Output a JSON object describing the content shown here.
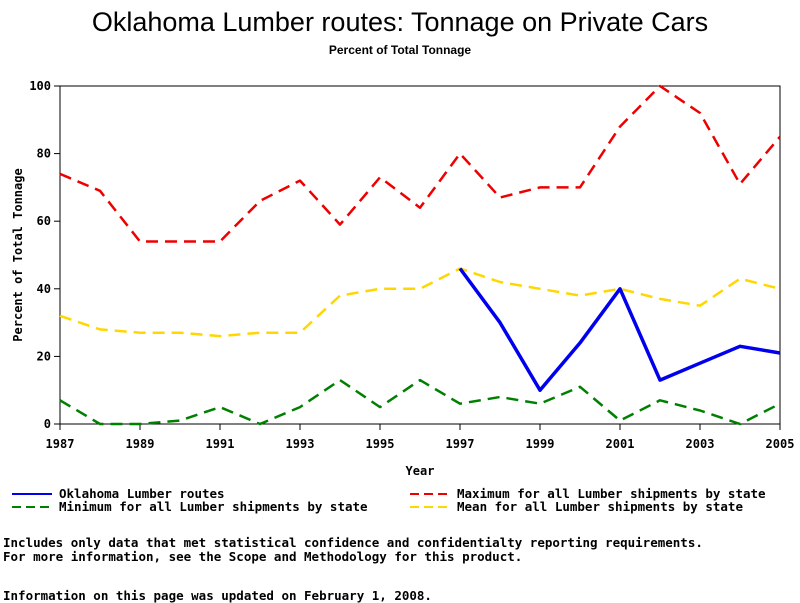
{
  "chart_data": {
    "type": "line",
    "title": "Oklahoma Lumber routes: Tonnage on Private Cars",
    "subtitle": "Percent of Total Tonnage",
    "xlabel": "Year",
    "ylabel": "Percent of Total Tonnage",
    "xlim": [
      1987,
      2005
    ],
    "ylim": [
      0,
      100
    ],
    "x_ticks": [
      "1987",
      "1989",
      "1991",
      "1993",
      "1995",
      "1997",
      "1999",
      "2001",
      "2003",
      "2005"
    ],
    "y_ticks": [
      "0",
      "20",
      "40",
      "60",
      "80",
      "100"
    ],
    "x": [
      1987,
      1988,
      1989,
      1990,
      1991,
      1992,
      1993,
      1994,
      1995,
      1996,
      1997,
      1998,
      1999,
      2000,
      2001,
      2002,
      2003,
      2004,
      2005
    ],
    "series": [
      {
        "name": "Oklahoma Lumber routes",
        "color": "#0000ee",
        "dashed": false,
        "values": [
          null,
          null,
          null,
          null,
          null,
          null,
          null,
          null,
          null,
          null,
          46,
          30,
          10,
          24,
          40,
          13,
          18,
          23,
          21
        ]
      },
      {
        "name": "Maximum for all Lumber shipments by state",
        "color": "#ee0000",
        "dashed": true,
        "values": [
          74,
          69,
          54,
          54,
          54,
          66,
          72,
          59,
          73,
          64,
          80,
          67,
          70,
          70,
          88,
          100,
          92,
          71,
          85
        ]
      },
      {
        "name": "Minimum for all Lumber shipments by state",
        "color": "#008000",
        "dashed": true,
        "values": [
          7,
          0,
          0,
          1,
          5,
          0,
          5,
          13,
          5,
          13,
          6,
          8,
          6,
          11,
          1,
          7,
          4,
          0,
          6
        ]
      },
      {
        "name": "Mean for all Lumber shipments by state",
        "color": "#ffd700",
        "dashed": true,
        "values": [
          32,
          28,
          27,
          27,
          26,
          27,
          27,
          38,
          40,
          40,
          46,
          42,
          40,
          38,
          40,
          37,
          35,
          43,
          40
        ]
      }
    ],
    "legend_position": "bottom"
  },
  "notes": {
    "line1": "Includes only data that met statistical confidence and confidentialty reporting requirements.",
    "line2": "For more information, see the Scope and Methodology for this product.",
    "line3": "Information on this page was updated on February 1, 2008."
  }
}
